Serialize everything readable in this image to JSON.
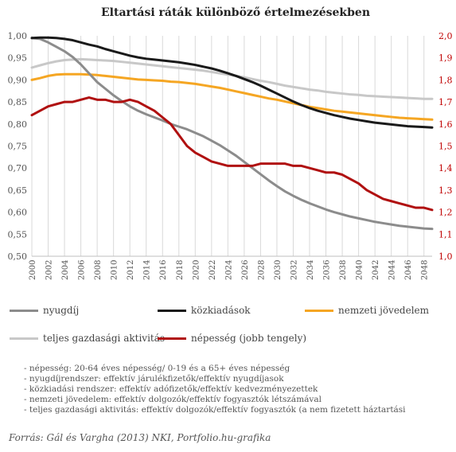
{
  "chart_data": {
    "type": "line",
    "title": "Eltartási ráták különböző értelmezésekben",
    "x": [
      2000,
      2001,
      2002,
      2003,
      2004,
      2005,
      2006,
      2007,
      2008,
      2009,
      2010,
      2011,
      2012,
      2013,
      2014,
      2015,
      2016,
      2017,
      2018,
      2019,
      2020,
      2021,
      2022,
      2023,
      2024,
      2025,
      2026,
      2027,
      2028,
      2029,
      2030,
      2031,
      2032,
      2033,
      2034,
      2035,
      2036,
      2037,
      2038,
      2039,
      2040,
      2041,
      2042,
      2043,
      2044,
      2045,
      2046,
      2047,
      2048,
      2049
    ],
    "x_tick_labels": [
      "2000",
      "2002",
      "2004",
      "2006",
      "2008",
      "2010",
      "2012",
      "2014",
      "2016",
      "2018",
      "2020",
      "2022",
      "2024",
      "2026",
      "2028",
      "2030",
      "2032",
      "2034",
      "2036",
      "2038",
      "2040",
      "2042",
      "2044",
      "2046",
      "2048"
    ],
    "y_left": {
      "ylim": [
        0.5,
        1.0
      ],
      "ticks": [
        "0,50",
        "0,55",
        "0,60",
        "0,65",
        "0,70",
        "0,75",
        "0,80",
        "0,85",
        "0,90",
        "0,95",
        "1,00"
      ]
    },
    "y_right": {
      "ylim": [
        1.0,
        2.0
      ],
      "ticks": [
        "1,0",
        "1,1",
        "1,2",
        "1,3",
        "1,4",
        "1,5",
        "1,6",
        "1,7",
        "1,8",
        "1,9",
        "2,0"
      ]
    },
    "series": [
      {
        "name": "nyugdíj",
        "color": "#8c8c8c",
        "axis": "left",
        "values": [
          0.995,
          0.993,
          0.985,
          0.975,
          0.965,
          0.952,
          0.935,
          0.915,
          0.895,
          0.88,
          0.865,
          0.852,
          0.84,
          0.83,
          0.822,
          0.815,
          0.808,
          0.8,
          0.794,
          0.788,
          0.78,
          0.772,
          0.762,
          0.752,
          0.74,
          0.728,
          0.714,
          0.7,
          0.686,
          0.672,
          0.659,
          0.647,
          0.637,
          0.628,
          0.62,
          0.613,
          0.606,
          0.6,
          0.595,
          0.59,
          0.586,
          0.582,
          0.578,
          0.575,
          0.572,
          0.569,
          0.567,
          0.565,
          0.563,
          0.562
        ]
      },
      {
        "name": "közkiadások",
        "color": "#1a1a1a",
        "axis": "left",
        "values": [
          0.995,
          0.996,
          0.996,
          0.995,
          0.993,
          0.99,
          0.985,
          0.98,
          0.976,
          0.97,
          0.965,
          0.96,
          0.955,
          0.951,
          0.948,
          0.946,
          0.944,
          0.942,
          0.94,
          0.937,
          0.934,
          0.93,
          0.926,
          0.921,
          0.915,
          0.909,
          0.902,
          0.895,
          0.887,
          0.878,
          0.869,
          0.86,
          0.851,
          0.843,
          0.836,
          0.83,
          0.825,
          0.82,
          0.816,
          0.812,
          0.809,
          0.806,
          0.803,
          0.801,
          0.799,
          0.797,
          0.795,
          0.794,
          0.793,
          0.792
        ]
      },
      {
        "name": "nemzeti jövedelem",
        "color": "#f5a623",
        "axis": "left",
        "values": [
          0.9,
          0.904,
          0.909,
          0.912,
          0.913,
          0.913,
          0.913,
          0.912,
          0.911,
          0.909,
          0.907,
          0.905,
          0.903,
          0.901,
          0.9,
          0.899,
          0.898,
          0.896,
          0.895,
          0.893,
          0.891,
          0.888,
          0.885,
          0.882,
          0.878,
          0.874,
          0.87,
          0.866,
          0.862,
          0.858,
          0.855,
          0.851,
          0.847,
          0.843,
          0.839,
          0.836,
          0.833,
          0.83,
          0.828,
          0.826,
          0.824,
          0.822,
          0.82,
          0.818,
          0.816,
          0.814,
          0.813,
          0.812,
          0.811,
          0.81
        ]
      },
      {
        "name": "teljes gazdasági aktivitás",
        "color": "#c8c8c8",
        "axis": "left",
        "values": [
          0.928,
          0.933,
          0.938,
          0.942,
          0.945,
          0.946,
          0.947,
          0.946,
          0.945,
          0.944,
          0.943,
          0.941,
          0.939,
          0.937,
          0.935,
          0.933,
          0.931,
          0.929,
          0.927,
          0.925,
          0.923,
          0.921,
          0.918,
          0.915,
          0.912,
          0.909,
          0.906,
          0.902,
          0.898,
          0.895,
          0.891,
          0.887,
          0.884,
          0.881,
          0.878,
          0.876,
          0.873,
          0.871,
          0.869,
          0.867,
          0.866,
          0.864,
          0.863,
          0.862,
          0.861,
          0.86,
          0.859,
          0.858,
          0.857,
          0.857
        ]
      },
      {
        "name": "népesség (jobb tengely)",
        "color": "#b01010",
        "axis": "right",
        "values": [
          1.64,
          1.66,
          1.68,
          1.69,
          1.7,
          1.7,
          1.71,
          1.72,
          1.71,
          1.71,
          1.7,
          1.7,
          1.71,
          1.7,
          1.68,
          1.66,
          1.63,
          1.6,
          1.55,
          1.5,
          1.47,
          1.45,
          1.43,
          1.42,
          1.41,
          1.41,
          1.41,
          1.41,
          1.42,
          1.42,
          1.42,
          1.42,
          1.41,
          1.41,
          1.4,
          1.39,
          1.38,
          1.38,
          1.37,
          1.35,
          1.33,
          1.3,
          1.28,
          1.26,
          1.25,
          1.24,
          1.23,
          1.22,
          1.22,
          1.21
        ]
      }
    ],
    "grid": "vertical",
    "legend_position": "bottom"
  },
  "legend": {
    "items": [
      "nyugdíj",
      "közkiadások",
      "nemzeti jövedelem",
      "teljes gazdasági aktivitás",
      "népesség (jobb tengely)"
    ]
  },
  "notes": [
    "- népesség: 20-64 éves népesség/ 0-19 és a 65+ éves népesség",
    "- nyugdíjrendszer: effektív járulékfizetők/effektív nyugdíjasok",
    "- közkiadási rendszer:  effektív adófizetők/effektív kedvezményezettek",
    "- nemzeti jövedelem:  effektív dolgozók/effektív fogyasztók létszámával",
    "- teljes gazdasági aktivitás:  effektív dolgozók/effektív fogyasztók (a nem fizetett háztartási"
  ],
  "source": "Forrás: Gál és Vargha (2013) NKI, Portfolio.hu-grafika"
}
